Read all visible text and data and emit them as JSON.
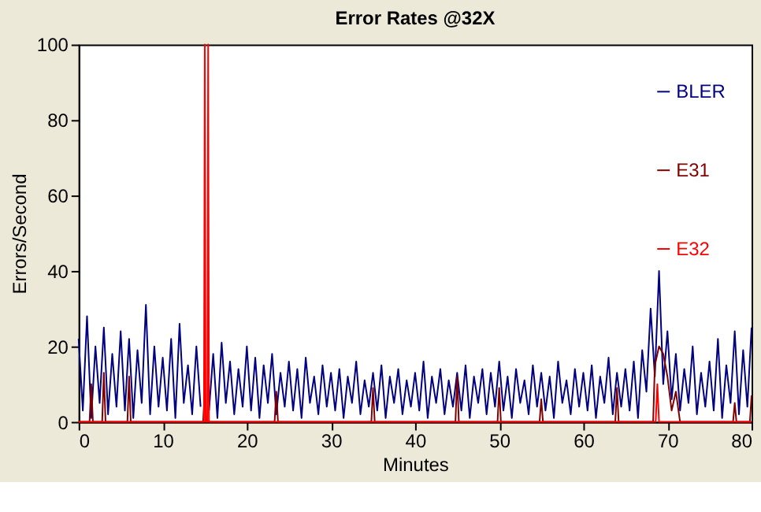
{
  "chart_data": {
    "type": "line",
    "title": "Error Rates @32X",
    "xlabel": "Minutes",
    "ylabel": "Errors/Second",
    "xlim": [
      0,
      80
    ],
    "xticks": [
      0,
      10,
      20,
      30,
      40,
      50,
      60,
      70,
      80
    ],
    "ylim": [
      0,
      100
    ],
    "yticks": [
      0,
      20,
      40,
      60,
      80,
      100
    ],
    "grid": false,
    "legend": "top right",
    "marker": "none",
    "line_style": "solid",
    "series": [
      {
        "name": "BLER",
        "color": "#000080",
        "x": [
          0,
          0.5,
          1,
          1.5,
          2,
          2.5,
          3,
          3.5,
          4,
          4.5,
          5,
          5.5,
          6,
          6.5,
          7,
          7.5,
          8,
          8.5,
          9,
          9.5,
          10,
          10.5,
          11,
          11.5,
          12,
          12.5,
          13,
          13.5,
          14,
          14.5,
          15,
          15.5,
          16,
          16.5,
          17,
          17.5,
          18,
          18.5,
          19,
          19.5,
          20,
          20.5,
          21,
          21.5,
          22,
          22.5,
          23,
          23.5,
          24,
          24.5,
          25,
          25.5,
          26,
          26.5,
          27,
          27.5,
          28,
          28.5,
          29,
          29.5,
          30,
          30.5,
          31,
          31.5,
          32,
          32.5,
          33,
          33.5,
          34,
          34.5,
          35,
          35.5,
          36,
          36.5,
          37,
          37.5,
          38,
          38.5,
          39,
          39.5,
          40,
          40.5,
          41,
          41.5,
          42,
          42.5,
          43,
          43.5,
          44,
          44.5,
          45,
          45.5,
          46,
          46.5,
          47,
          47.5,
          48,
          48.5,
          49,
          49.5,
          50,
          50.5,
          51,
          51.5,
          52,
          52.5,
          53,
          53.5,
          54,
          54.5,
          55,
          55.5,
          56,
          56.5,
          57,
          57.5,
          58,
          58.5,
          59,
          59.5,
          60,
          60.5,
          61,
          61.5,
          62,
          62.5,
          63,
          63.5,
          64,
          64.5,
          65,
          65.5,
          66,
          66.5,
          67,
          67.5,
          68,
          68.5,
          69,
          69.5,
          70,
          70.5,
          71,
          71.5,
          72,
          72.5,
          73,
          73.5,
          74,
          74.5,
          75,
          75.5,
          76,
          76.5,
          77,
          77.5,
          78,
          78.5,
          79,
          79.5,
          80
        ],
        "values": [
          22,
          3,
          28,
          1,
          20,
          5,
          25,
          2,
          18,
          4,
          24,
          3,
          22,
          1,
          19,
          5,
          31,
          2,
          20,
          4,
          17,
          3,
          22,
          1,
          26,
          5,
          15,
          2,
          20,
          4,
          null,
          3,
          18,
          1,
          21,
          5,
          16,
          2,
          14,
          4,
          20,
          3,
          17,
          1,
          15,
          5,
          18,
          2,
          13,
          4,
          16,
          3,
          14,
          1,
          17,
          5,
          12,
          2,
          15,
          4,
          13,
          3,
          14,
          1,
          12,
          5,
          16,
          2,
          11,
          4,
          13,
          3,
          15,
          1,
          12,
          5,
          14,
          2,
          11,
          4,
          13,
          3,
          16,
          1,
          12,
          5,
          14,
          2,
          11,
          4,
          13,
          3,
          15,
          1,
          12,
          5,
          14,
          2,
          13,
          4,
          16,
          3,
          12,
          1,
          14,
          5,
          11,
          2,
          15,
          4,
          13,
          3,
          12,
          1,
          16,
          5,
          11,
          2,
          14,
          4,
          13,
          3,
          15,
          1,
          12,
          5,
          17,
          2,
          13,
          4,
          14,
          3,
          16,
          1,
          19,
          8,
          30,
          12,
          40,
          10,
          24,
          6,
          18,
          3,
          14,
          5,
          20,
          2,
          13,
          4,
          16,
          3,
          22,
          1,
          15,
          5,
          24,
          2,
          19,
          4,
          25
        ]
      },
      {
        "name": "E31",
        "color": "#800000",
        "x": [
          0,
          1.3,
          1.5,
          1.7,
          2.8,
          3,
          3.2,
          5.8,
          6,
          6.2,
          14.8,
          15,
          15.2,
          23.3,
          23.5,
          23.7,
          34.8,
          35,
          35.2,
          44.8,
          45,
          45.2,
          49.8,
          50,
          50.2,
          54.8,
          55,
          55.2,
          63.8,
          64,
          64.2,
          68.3,
          68.5,
          69,
          69.5,
          70,
          70.5,
          71,
          71.5,
          77.8,
          78,
          78.2,
          79.8,
          80
        ],
        "values": [
          0,
          0,
          10,
          0,
          0,
          13,
          0,
          0,
          12,
          0,
          0,
          8,
          0,
          0,
          8,
          0,
          0,
          9,
          0,
          0,
          12,
          0,
          0,
          9,
          0,
          0,
          6,
          0,
          0,
          9,
          0,
          0,
          15,
          20,
          18,
          12,
          3,
          8,
          0,
          0,
          5,
          0,
          0,
          7
        ]
      },
      {
        "name": "E32",
        "color": "#ff0000",
        "x": [
          0,
          14.9,
          15,
          15.1,
          15.3,
          15.4,
          15.5,
          68.6,
          68.8,
          69.0,
          80
        ],
        "values": [
          0,
          0,
          100,
          0,
          0,
          100,
          0,
          0,
          10,
          0,
          0
        ]
      }
    ]
  }
}
